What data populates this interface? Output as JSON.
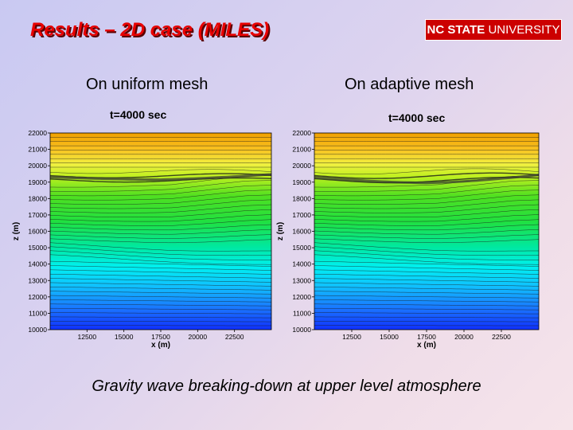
{
  "slide": {
    "title": "Results – 2D case (MILES)",
    "logo": {
      "bold": "NC STATE",
      "light": " UNIVERSITY"
    },
    "caption": "Gravity wave breaking-down at upper level atmosphere"
  },
  "colors": {
    "title_red": "#e80000",
    "logo_red": "#cc0000",
    "contour_top": "#f0a000",
    "contour_bottom": "#1030ff"
  },
  "chart_data": [
    {
      "type": "contour",
      "subtitle": "On uniform mesh",
      "title": "t=4000 sec",
      "xlabel": "x (m)",
      "ylabel": "z (m)",
      "xlim": [
        10000,
        25000
      ],
      "ylim": [
        10000,
        22000
      ],
      "xticks": [
        12500,
        15000,
        17500,
        20000,
        22500
      ],
      "yticks": [
        10000,
        11000,
        12000,
        13000,
        14000,
        15000,
        16000,
        17000,
        18000,
        19000,
        20000,
        21000,
        22000
      ]
    },
    {
      "type": "contour",
      "subtitle": "On adaptive mesh",
      "title": "t=4000 sec",
      "xlabel": "x (m)",
      "ylabel": "z (m)",
      "xlim": [
        10000,
        25000
      ],
      "ylim": [
        10000,
        22000
      ],
      "xticks": [
        12500,
        15000,
        17500,
        20000,
        22500
      ],
      "yticks": [
        10000,
        11000,
        12000,
        13000,
        14000,
        15000,
        16000,
        17000,
        18000,
        19000,
        20000,
        21000,
        22000
      ]
    }
  ]
}
